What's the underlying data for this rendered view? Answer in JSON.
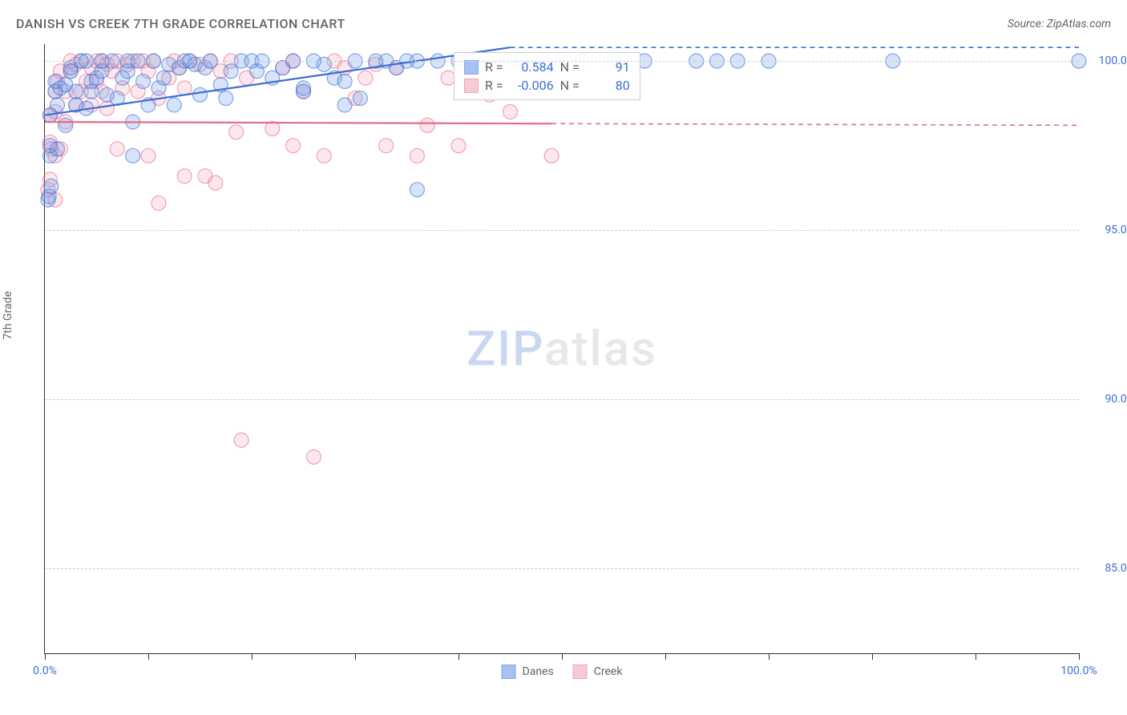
{
  "title": "DANISH VS CREEK 7TH GRADE CORRELATION CHART",
  "source": "Source: ZipAtlas.com",
  "ylabel": "7th Grade",
  "watermark": {
    "a": "ZIP",
    "b": "atlas"
  },
  "chart": {
    "type": "scatter",
    "xlim": [
      0,
      100
    ],
    "ylim": [
      82.5,
      100.5
    ],
    "x_ticks": [
      0,
      10,
      20,
      30,
      40,
      50,
      60,
      70,
      80,
      90,
      100
    ],
    "x_tick_labels": {
      "0": "0.0%",
      "100": "100.0%"
    },
    "y_ticks": [
      85,
      90,
      95,
      100
    ],
    "y_tick_labels": {
      "85": "85.0%",
      "90": "90.0%",
      "95": "95.0%",
      "100": "100.0%"
    },
    "background_color": "#ffffff",
    "grid_color": "#d0d0d0",
    "axis_color": "#333333",
    "label_color": "#5f6368",
    "value_color": "#3b6fd6",
    "marker_radius": 9,
    "marker_fill_opacity": 0.28,
    "marker_stroke_width": 1.2,
    "trend_width_solid": 2.2,
    "trend_width_dash": 1.6,
    "series": [
      {
        "name": "Danes",
        "color": "#6a9be8",
        "stroke": "#3b6fd6",
        "trend_solid": {
          "x1": 0,
          "y1": 98.4,
          "x2": 45,
          "y2": 100.4
        },
        "trend_dash": {
          "x1": 45,
          "y1": 100.4,
          "x2": 100,
          "y2": 100.4
        },
        "stats": {
          "R": "0.584",
          "N": "91"
        },
        "points": [
          [
            0.5,
            97.2
          ],
          [
            0.5,
            97.5
          ],
          [
            0.6,
            96.3
          ],
          [
            0.5,
            98.4
          ],
          [
            1,
            99.1
          ],
          [
            1,
            99.4
          ],
          [
            1.2,
            97.4
          ],
          [
            1.2,
            98.7
          ],
          [
            1.5,
            99.2
          ],
          [
            2,
            99.3
          ],
          [
            2,
            98.1
          ],
          [
            2.5,
            99.7
          ],
          [
            2.5,
            99.8
          ],
          [
            3,
            98.7
          ],
          [
            3,
            99.1
          ],
          [
            3.5,
            100.0
          ],
          [
            4,
            98.6
          ],
          [
            4,
            100.0
          ],
          [
            4.5,
            99.1
          ],
          [
            4.5,
            99.4
          ],
          [
            5,
            99.5
          ],
          [
            5.5,
            99.7
          ],
          [
            5.5,
            100.0
          ],
          [
            6,
            99.0
          ],
          [
            6.5,
            100.0
          ],
          [
            7,
            98.9
          ],
          [
            7.5,
            99.5
          ],
          [
            8,
            99.7
          ],
          [
            8,
            100.0
          ],
          [
            8.5,
            98.2
          ],
          [
            8.5,
            97.2
          ],
          [
            9,
            100.0
          ],
          [
            9.5,
            99.4
          ],
          [
            10,
            98.7
          ],
          [
            10.5,
            100.0
          ],
          [
            11,
            99.2
          ],
          [
            11.5,
            99.5
          ],
          [
            12,
            99.9
          ],
          [
            12.5,
            98.7
          ],
          [
            13,
            99.8
          ],
          [
            13.5,
            100.0
          ],
          [
            14,
            100.0
          ],
          [
            14.5,
            99.9
          ],
          [
            15,
            99.0
          ],
          [
            15.5,
            99.8
          ],
          [
            16,
            100.0
          ],
          [
            17,
            99.3
          ],
          [
            17.5,
            98.9
          ],
          [
            18,
            99.7
          ],
          [
            19,
            100.0
          ],
          [
            20,
            100.0
          ],
          [
            20.5,
            99.7
          ],
          [
            21,
            100.0
          ],
          [
            22,
            99.5
          ],
          [
            23,
            99.8
          ],
          [
            24,
            100.0
          ],
          [
            25,
            99.1
          ],
          [
            25,
            99.2
          ],
          [
            26,
            100.0
          ],
          [
            27,
            99.9
          ],
          [
            28,
            99.5
          ],
          [
            29,
            98.7
          ],
          [
            29,
            99.4
          ],
          [
            30,
            100.0
          ],
          [
            30.5,
            98.9
          ],
          [
            32,
            100.0
          ],
          [
            33,
            100.0
          ],
          [
            34,
            99.8
          ],
          [
            35,
            100.0
          ],
          [
            36,
            100.0
          ],
          [
            36,
            96.2
          ],
          [
            38,
            100.0
          ],
          [
            40,
            100.0
          ],
          [
            41,
            100.0
          ],
          [
            42,
            99.9
          ],
          [
            45,
            100.0
          ],
          [
            46,
            100.0
          ],
          [
            48,
            100.0
          ],
          [
            50,
            100.0
          ],
          [
            52,
            100.0
          ],
          [
            55,
            100.0
          ],
          [
            56,
            100.0
          ],
          [
            58,
            100.0
          ],
          [
            63,
            100.0
          ],
          [
            65,
            100.0
          ],
          [
            67,
            100.0
          ],
          [
            70,
            100.0
          ],
          [
            82,
            100.0
          ],
          [
            100,
            100.0
          ],
          [
            0.3,
            95.9
          ],
          [
            0.4,
            96.0
          ]
        ]
      },
      {
        "name": "Creek",
        "color": "#f5a8bb",
        "stroke": "#e76a8a",
        "trend_solid": {
          "x1": 0,
          "y1": 98.2,
          "x2": 49,
          "y2": 98.15
        },
        "trend_dash": {
          "x1": 49,
          "y1": 98.15,
          "x2": 100,
          "y2": 98.1
        },
        "stats": {
          "R": "-0.006",
          "N": "80"
        },
        "points": [
          [
            0.3,
            96.2
          ],
          [
            0.5,
            96.5
          ],
          [
            0.5,
            97.6
          ],
          [
            0.5,
            98.4
          ],
          [
            0.6,
            97.4
          ],
          [
            1,
            97.2
          ],
          [
            1,
            99.1
          ],
          [
            1,
            98.5
          ],
          [
            1,
            95.9
          ],
          [
            1.2,
            99.4
          ],
          [
            1.5,
            99.7
          ],
          [
            1.5,
            97.4
          ],
          [
            2,
            98.2
          ],
          [
            2,
            99.1
          ],
          [
            2.5,
            100.0
          ],
          [
            2.5,
            99.7
          ],
          [
            3,
            98.7
          ],
          [
            3,
            99.9
          ],
          [
            3.5,
            99.1
          ],
          [
            3.5,
            100.0
          ],
          [
            4,
            99.4
          ],
          [
            4.5,
            98.7
          ],
          [
            4.5,
            99.8
          ],
          [
            5,
            99.4
          ],
          [
            5,
            100.0
          ],
          [
            5.5,
            99.1
          ],
          [
            5.5,
            100.0
          ],
          [
            6,
            99.9
          ],
          [
            6,
            98.6
          ],
          [
            6.5,
            99.7
          ],
          [
            7,
            100.0
          ],
          [
            7,
            97.4
          ],
          [
            7.5,
            99.2
          ],
          [
            8,
            99.9
          ],
          [
            8.5,
            100.0
          ],
          [
            9,
            99.1
          ],
          [
            9.5,
            100.0
          ],
          [
            10,
            99.7
          ],
          [
            10,
            97.2
          ],
          [
            10.5,
            100.0
          ],
          [
            11,
            98.9
          ],
          [
            11,
            95.8
          ],
          [
            12,
            99.5
          ],
          [
            12.5,
            100.0
          ],
          [
            13,
            99.8
          ],
          [
            13.5,
            99.2
          ],
          [
            13.5,
            96.6
          ],
          [
            14,
            100.0
          ],
          [
            15,
            99.9
          ],
          [
            15.5,
            96.6
          ],
          [
            16,
            100.0
          ],
          [
            16.5,
            96.4
          ],
          [
            17,
            99.7
          ],
          [
            18,
            100.0
          ],
          [
            18.5,
            97.9
          ],
          [
            19,
            88.8
          ],
          [
            19.5,
            99.5
          ],
          [
            22,
            98.0
          ],
          [
            23,
            99.8
          ],
          [
            24,
            100.0
          ],
          [
            24,
            97.5
          ],
          [
            25,
            99.1
          ],
          [
            26,
            88.3
          ],
          [
            27,
            97.2
          ],
          [
            28,
            100.0
          ],
          [
            29,
            99.8
          ],
          [
            30,
            98.9
          ],
          [
            31,
            99.5
          ],
          [
            32,
            99.9
          ],
          [
            33,
            97.5
          ],
          [
            34,
            99.8
          ],
          [
            36,
            97.2
          ],
          [
            37,
            98.1
          ],
          [
            39,
            99.5
          ],
          [
            40,
            97.5
          ],
          [
            43,
            99.0
          ],
          [
            45,
            98.5
          ],
          [
            47,
            99.8
          ],
          [
            49,
            99.5
          ],
          [
            49,
            97.2
          ]
        ]
      }
    ],
    "legend": [
      "Danes",
      "Creek"
    ]
  }
}
